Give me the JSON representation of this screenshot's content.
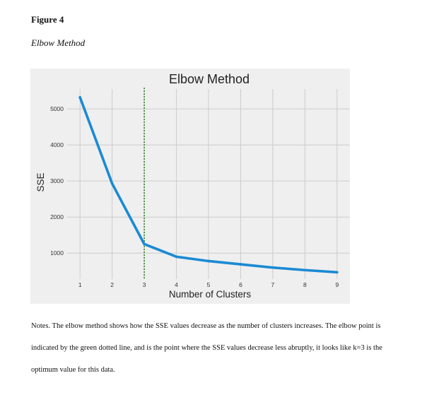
{
  "figure": {
    "label": "Figure 4",
    "title": "Elbow Method"
  },
  "chart_data": {
    "type": "line",
    "title": "Elbow Method",
    "xlabel": "Number of Clusters",
    "ylabel": "SSE",
    "x": [
      1,
      2,
      3,
      4,
      5,
      6,
      7,
      8,
      9
    ],
    "series": [
      {
        "values": [
          5320,
          2930,
          1250,
          900,
          780,
          690,
          600,
          530,
          470
        ]
      }
    ],
    "xticks": [
      1,
      2,
      3,
      4,
      5,
      6,
      7,
      8,
      9
    ],
    "yticks": [
      1000,
      2000,
      3000,
      4000,
      5000
    ],
    "xlim": [
      0.6,
      9.4
    ],
    "ylim": [
      280,
      5550
    ],
    "grid": true,
    "elbow_marker": {
      "x": 3,
      "style": "dotted",
      "color": "#2e8b22"
    },
    "colors": {
      "line": "#1a8ad4",
      "background": "#efefef",
      "grid": "#cccccc"
    }
  },
  "notes": "Notes. The elbow method shows how the SSE values decrease as the number of clusters increases. The elbow point is indicated by the green dotted line, and is the point where the SSE values decrease less abruptly, it looks like k=3 is the optimum value for this data."
}
